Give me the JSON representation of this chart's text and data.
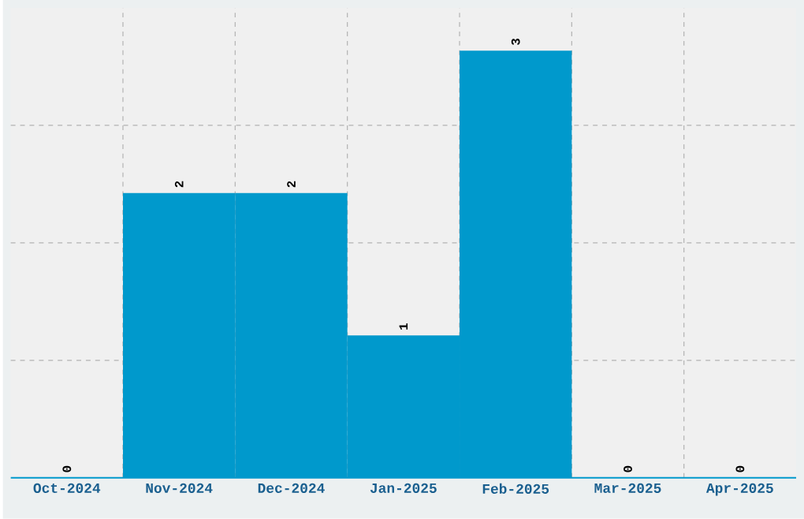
{
  "chart_data": {
    "type": "bar",
    "categories": [
      "Oct-2024",
      "Nov-2024",
      "Dec-2024",
      "Jan-2025",
      "Feb-2025",
      "Mar-2025",
      "Apr-2025"
    ],
    "values": [
      0,
      2,
      2,
      1,
      3,
      0,
      0
    ],
    "color": "#0099cc",
    "data_labels": true,
    "grid": true,
    "tick_labels": "x"
  }
}
